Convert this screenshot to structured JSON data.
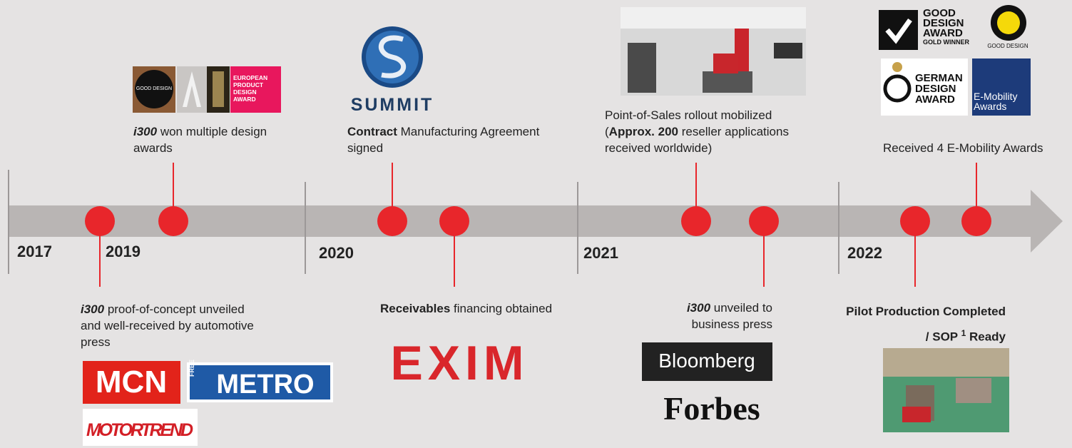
{
  "timeline": {
    "years": [
      "2017",
      "2019",
      "2020",
      "2021",
      "2022"
    ]
  },
  "events": [
    {
      "lines": [
        [
          {
            "text": "i300",
            "style": "bold-italic"
          },
          {
            "text": " won multiple design"
          }
        ],
        [
          {
            "text": "awards"
          }
        ]
      ]
    },
    {
      "lines": [
        [
          {
            "text": "Contract",
            "style": "bold"
          },
          {
            "text": " Manufacturing Agreement"
          }
        ],
        [
          {
            "text": "signed"
          }
        ]
      ]
    },
    {
      "lines": [
        [
          {
            "text": "Point-of-Sales rollout mobilized"
          }
        ],
        [
          {
            "text": "("
          },
          {
            "text": "Approx. 200",
            "style": "bold"
          },
          {
            "text": " reseller applications"
          }
        ],
        [
          {
            "text": "received worldwide)"
          }
        ]
      ]
    },
    {
      "lines": [
        [
          {
            "text": "Received 4 E-Mobility Awards"
          }
        ]
      ]
    },
    {
      "lines": [
        [
          {
            "text": "i300",
            "style": "bold-italic"
          },
          {
            "text": " proof-of-concept unveiled"
          }
        ],
        [
          {
            "text": "and well-received by automotive"
          }
        ],
        [
          {
            "text": "press"
          }
        ]
      ]
    },
    {
      "lines": [
        [
          {
            "text": "Receivables",
            "style": "bold"
          },
          {
            "text": " financing obtained"
          }
        ]
      ]
    },
    {
      "lines": [
        [
          {
            "text": "i300",
            "style": "bold-italic"
          },
          {
            "text": " unveiled to"
          }
        ],
        [
          {
            "text": "business press"
          }
        ]
      ]
    },
    {
      "lines": [
        [
          {
            "text": "Pilot Production Completed",
            "style": "bold"
          }
        ],
        [
          {
            "text": "/ SOP ",
            "style": "bold"
          },
          {
            "text": "1",
            "style": "bold-sup"
          },
          {
            "text": " Ready",
            "style": "bold"
          }
        ]
      ]
    }
  ],
  "logos": {
    "good_design": "GOOD DESIGN",
    "european_award": "EUROPEAN PRODUCT DESIGN AWARD",
    "summit": "SUMMIT",
    "mcn": "MCN",
    "metro_free": "FREE",
    "metro": "METRO",
    "motortrend": "MOTORTREND",
    "exim": "EXIM",
    "bloomberg": "Bloomberg",
    "forbes": "Forbes",
    "gda_title": "GOOD DESIGN AWARD",
    "gda_sub": "GOLD WINNER",
    "gda_mark": "GOOD DESIGN",
    "german_award": "GERMAN DESIGN AWARD",
    "emobility": "E-Mobility Awards"
  }
}
